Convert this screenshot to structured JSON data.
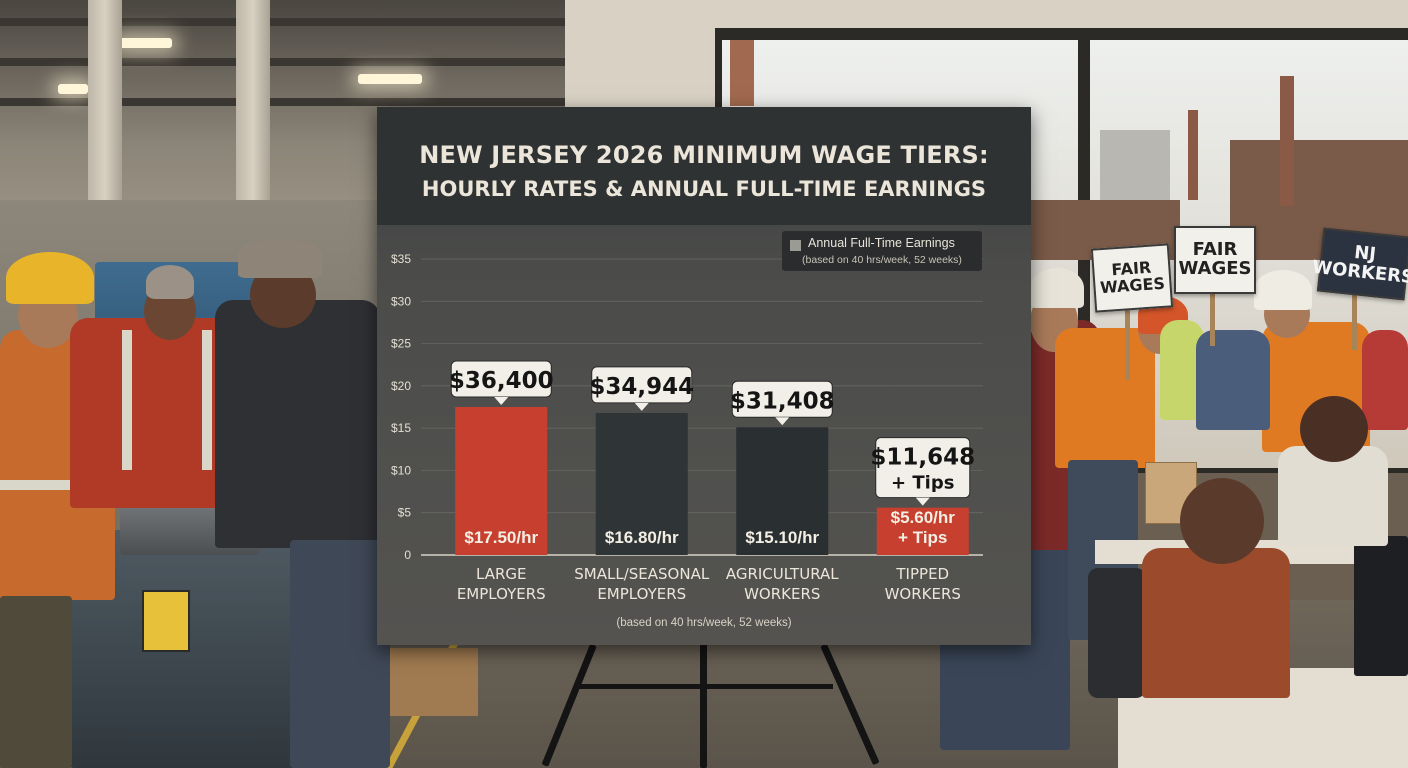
{
  "chart_data": {
    "type": "bar",
    "title": "NEW JERSEY 2026 MINIMUM WAGE TIERS:",
    "subtitle": "HOURLY RATES & ANNUAL FULL-TIME EARNINGS",
    "categories": [
      "LARGE EMPLOYERS",
      "SMALL/SEASONAL EMPLOYERS",
      "AGRICULTURAL WORKERS",
      "TIPPED WORKERS"
    ],
    "category_lines": [
      [
        "LARGE",
        "EMPLOYERS"
      ],
      [
        "SMALL/SEASONAL",
        "EMPLOYERS"
      ],
      [
        "AGRICULTURAL",
        "WORKERS"
      ],
      [
        "TIPPED",
        "WORKERS"
      ]
    ],
    "hourly_values": [
      17.5,
      16.8,
      15.1,
      5.6
    ],
    "bar_labels": [
      [
        "$17.50/hr"
      ],
      [
        "$16.80/hr"
      ],
      [
        "$15.10/hr"
      ],
      [
        "$5.60/hr",
        "+ Tips"
      ]
    ],
    "annual_values": [
      36400,
      34944,
      31408,
      11648
    ],
    "annual_labels": [
      [
        "$36,400"
      ],
      [
        "$34,944"
      ],
      [
        "$31,408"
      ],
      [
        "$11,648",
        "+ Tips"
      ]
    ],
    "bar_colors": [
      "#c7402f",
      "#2f3436",
      "#2a2f32",
      "#c7402f"
    ],
    "ylim": [
      0,
      35
    ],
    "y_ticks": [
      0,
      5,
      10,
      15,
      20,
      25,
      30,
      35
    ],
    "y_tick_labels": [
      "0",
      "$5",
      "$10",
      "$15",
      "$20",
      "$25",
      "$30",
      "$35"
    ],
    "legend": {
      "label": "Annual Full-Time Earnings",
      "note": "(based on 40 hrs/week, 52 weeks)",
      "position": "top-right"
    },
    "footnote": "(based on 40 hrs/week, 52 weeks)",
    "grid": true
  },
  "signs": {
    "fair_wages_left": "FAIR WAGES",
    "fair_wages_right": "FAIR WAGES",
    "nj_workers": "NJ WORKERS"
  },
  "colors": {
    "accent_red": "#c7402f",
    "board_bg": "#4b4c4a",
    "title_band": "#2f3233"
  }
}
